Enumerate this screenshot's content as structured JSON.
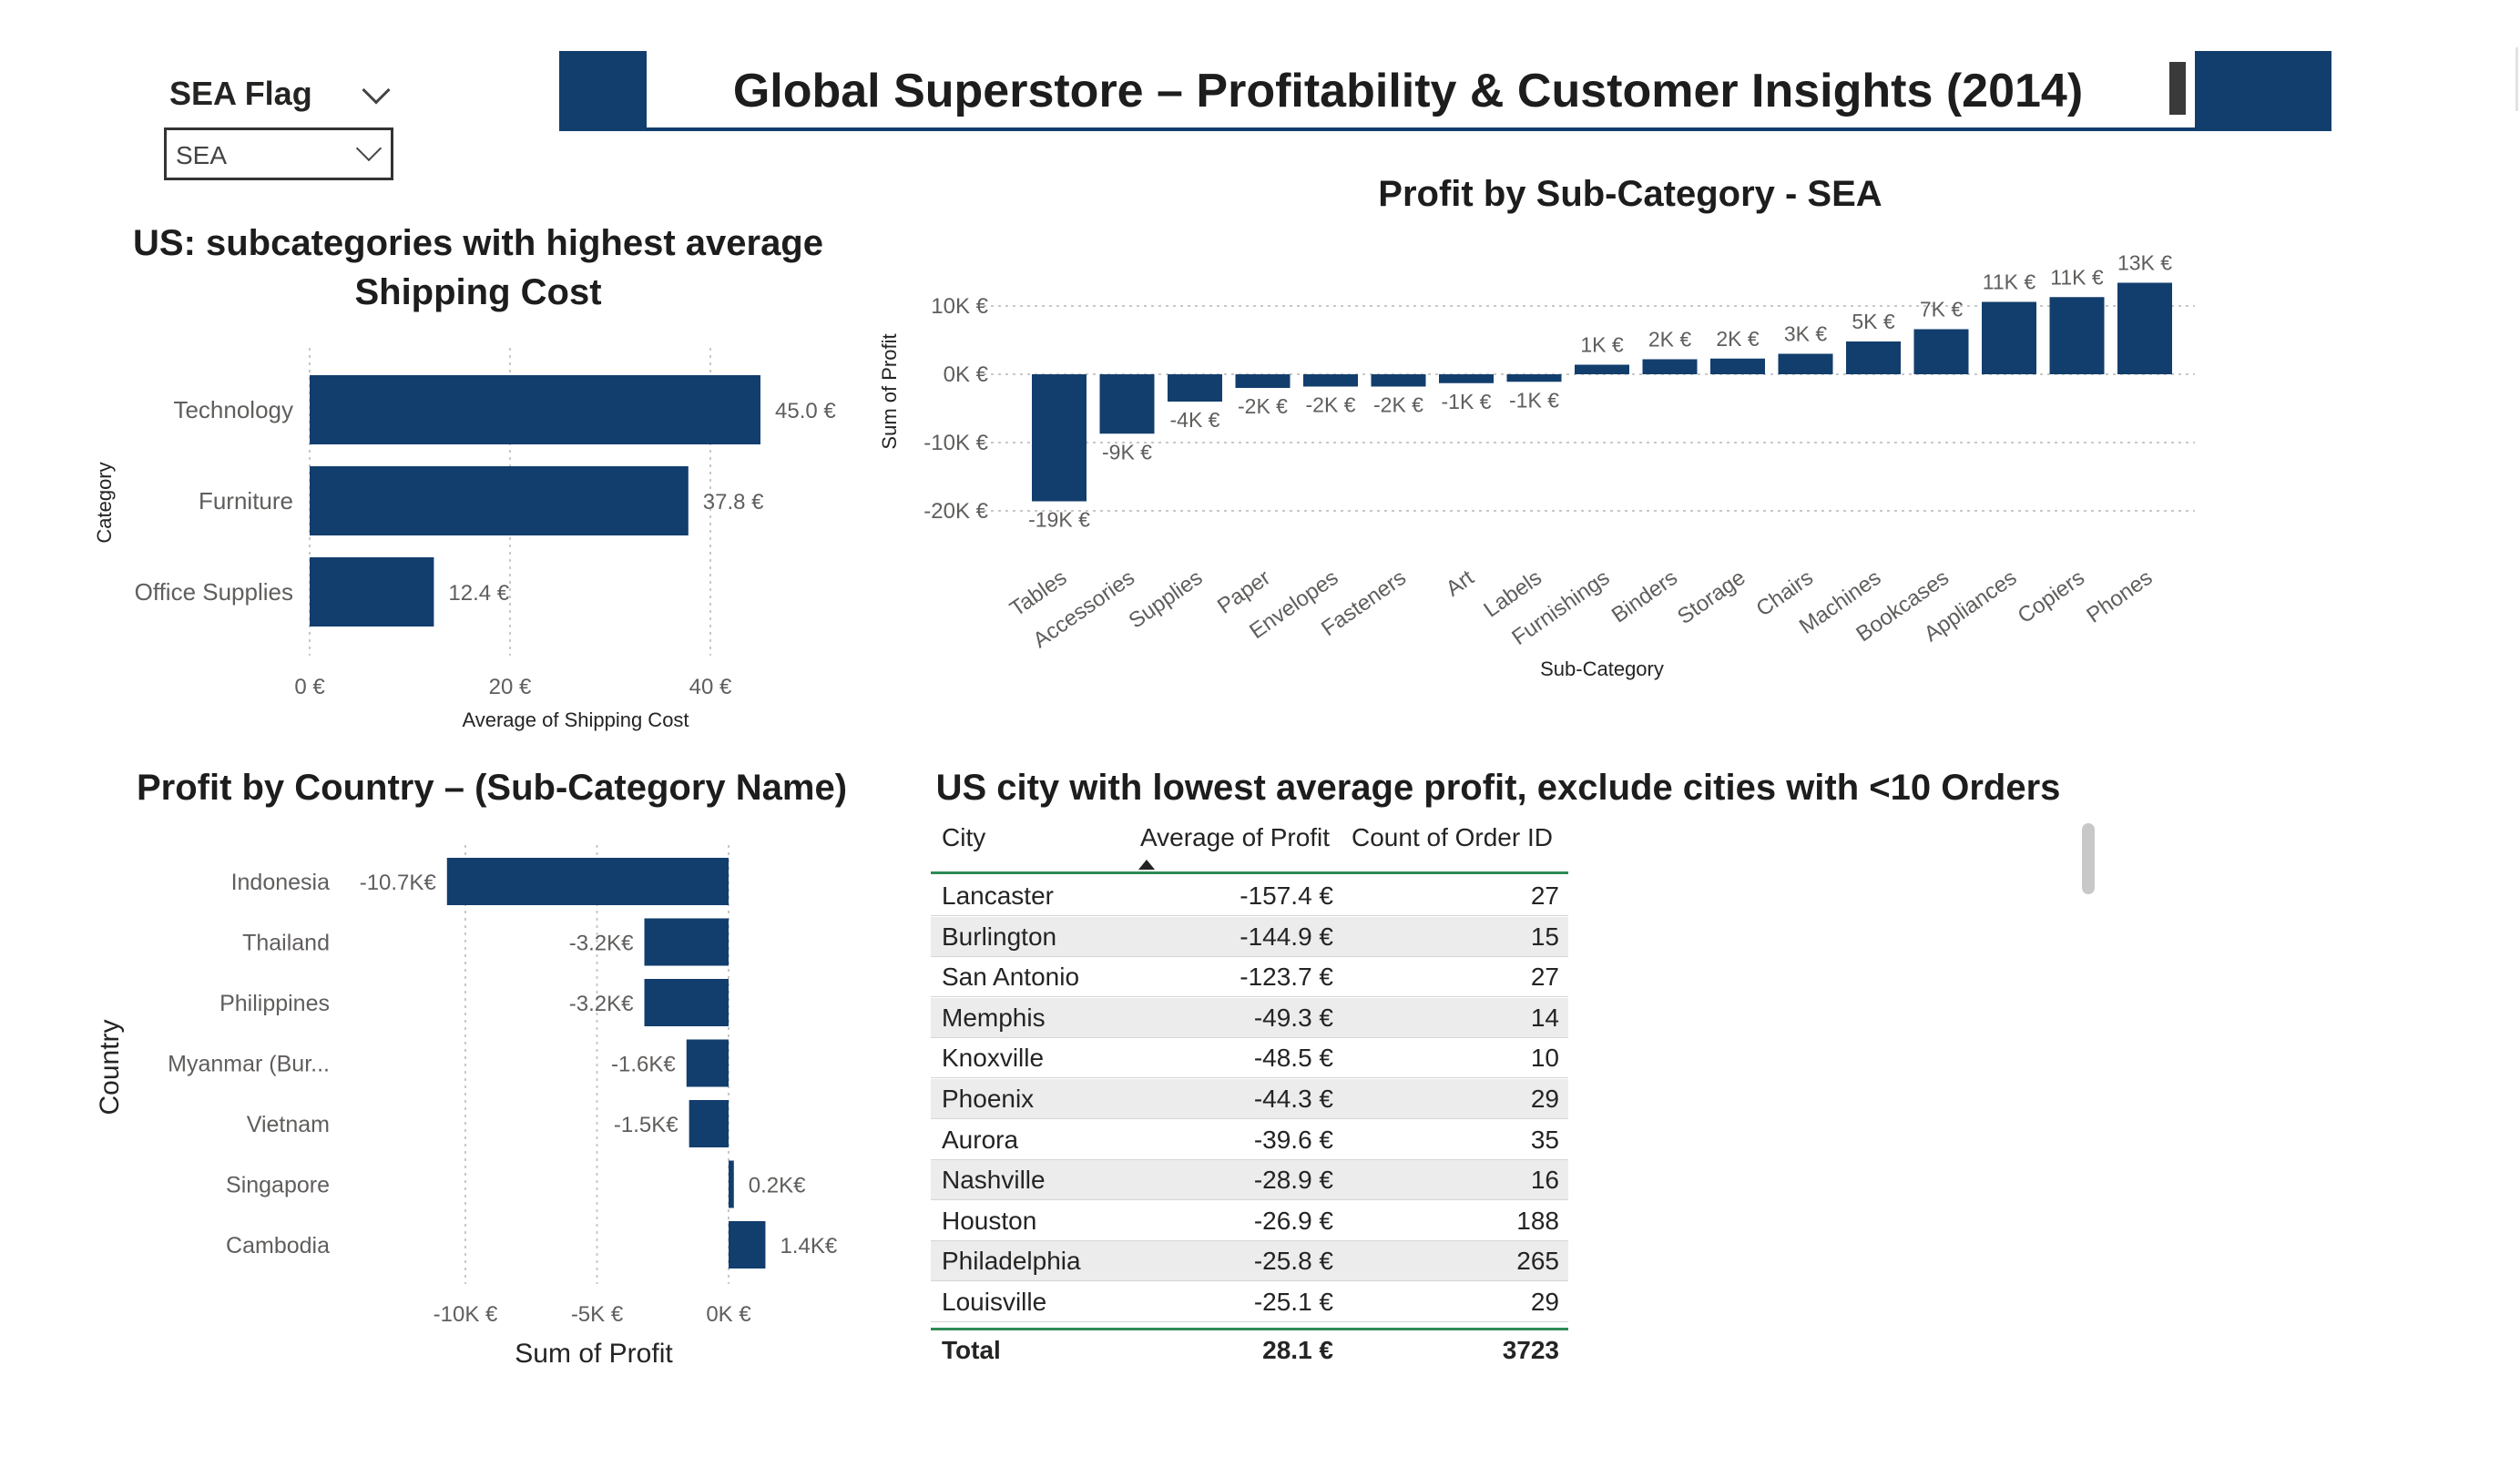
{
  "slicer": {
    "title": "SEA Flag",
    "value": "SEA"
  },
  "header": {
    "title": "Global Superstore – Profitability & Customer Insights (2014)",
    "accent": "#123e6d"
  },
  "ship_chart": {
    "title_line1": "US: subcategories with highest average",
    "title_line2": "Shipping Cost",
    "chart_data": {
      "type": "bar",
      "orientation": "horizontal",
      "categories": [
        "Technology",
        "Furniture",
        "Office Supplies"
      ],
      "values": [
        45.0,
        37.8,
        12.4
      ],
      "data_labels": [
        "45.0 €",
        "37.8 €",
        "12.4 €"
      ],
      "xlabel": "Average of Shipping Cost",
      "ylabel": "Category",
      "xlim": [
        0,
        45
      ],
      "xticks": [
        0,
        20,
        40
      ],
      "xtick_labels": [
        "0 €",
        "20 €",
        "40 €"
      ],
      "grid": true,
      "color": "#123e6d"
    }
  },
  "subcat_chart": {
    "title": "Profit by Sub-Category - SEA",
    "chart_data": {
      "type": "bar",
      "categories": [
        "Tables",
        "Accessories",
        "Supplies",
        "Paper",
        "Envelopes",
        "Fasteners",
        "Art",
        "Labels",
        "Furnishings",
        "Binders",
        "Storage",
        "Chairs",
        "Machines",
        "Bookcases",
        "Appliances",
        "Copiers",
        "Phones"
      ],
      "values": [
        -18.6,
        -8.7,
        -4.0,
        -2.0,
        -1.8,
        -1.8,
        -1.3,
        -1.1,
        1.4,
        2.2,
        2.3,
        3.0,
        4.8,
        6.6,
        10.6,
        11.3,
        13.4
      ],
      "data_labels": [
        "-19K €",
        "-9K €",
        "-4K €",
        "-2K €",
        "-2K €",
        "-2K €",
        "-1K €",
        "-1K €",
        "1K €",
        "2K €",
        "2K €",
        "3K €",
        "5K €",
        "7K €",
        "11K €",
        "11K €",
        "13K €"
      ],
      "unit": "K €",
      "xlabel": "Sub-Category",
      "ylabel": "Sum of Profit",
      "ylim": [
        -20,
        10
      ],
      "yticks": [
        10,
        0,
        -10,
        -20
      ],
      "ytick_labels": [
        "10K €",
        "0K €",
        "-10K €",
        "-20K €"
      ],
      "grid": true,
      "color": "#123e6d"
    }
  },
  "country_chart": {
    "title": "Profit by Country – (Sub-Category Name)",
    "chart_data": {
      "type": "bar",
      "orientation": "horizontal",
      "categories": [
        "Indonesia",
        "Thailand",
        "Philippines",
        "Myanmar (Bur...",
        "Vietnam",
        "Singapore",
        "Cambodia"
      ],
      "values": [
        -10.7,
        -3.2,
        -3.2,
        -1.6,
        -1.5,
        0.2,
        1.4
      ],
      "data_labels": [
        "-10.7K€",
        "-3.2K€",
        "-3.2K€",
        "-1.6K€",
        "-1.5K€",
        "0.2K€",
        "1.4K€"
      ],
      "unit": "K€",
      "xlabel": "Sum of Profit",
      "ylabel": "Country",
      "xlim": [
        -10.7,
        1.4
      ],
      "xticks": [
        -10,
        -5,
        0
      ],
      "xtick_labels": [
        "-10K €",
        "-5K €",
        "0K €"
      ],
      "grid": true,
      "color": "#123e6d"
    }
  },
  "city_table": {
    "title": "US city with lowest average profit, exclude cities with <10 Orders",
    "columns": [
      "City",
      "Average of Profit",
      "Count of Order ID"
    ],
    "rows": [
      {
        "city": "Lancaster",
        "avg": "-157.4 €",
        "count": "27"
      },
      {
        "city": "Burlington",
        "avg": "-144.9 €",
        "count": "15"
      },
      {
        "city": "San Antonio",
        "avg": "-123.7 €",
        "count": "27"
      },
      {
        "city": "Memphis",
        "avg": "-49.3 €",
        "count": "14"
      },
      {
        "city": "Knoxville",
        "avg": "-48.5 €",
        "count": "10"
      },
      {
        "city": "Phoenix",
        "avg": "-44.3 €",
        "count": "29"
      },
      {
        "city": "Aurora",
        "avg": "-39.6 €",
        "count": "35"
      },
      {
        "city": "Nashville",
        "avg": "-28.9 €",
        "count": "16"
      },
      {
        "city": "Houston",
        "avg": "-26.9 €",
        "count": "188"
      },
      {
        "city": "Philadelphia",
        "avg": "-25.8 €",
        "count": "265"
      },
      {
        "city": "Louisville",
        "avg": "-25.1 €",
        "count": "29"
      }
    ],
    "total": {
      "label": "Total",
      "avg": "28.1 €",
      "count": "3723"
    }
  }
}
